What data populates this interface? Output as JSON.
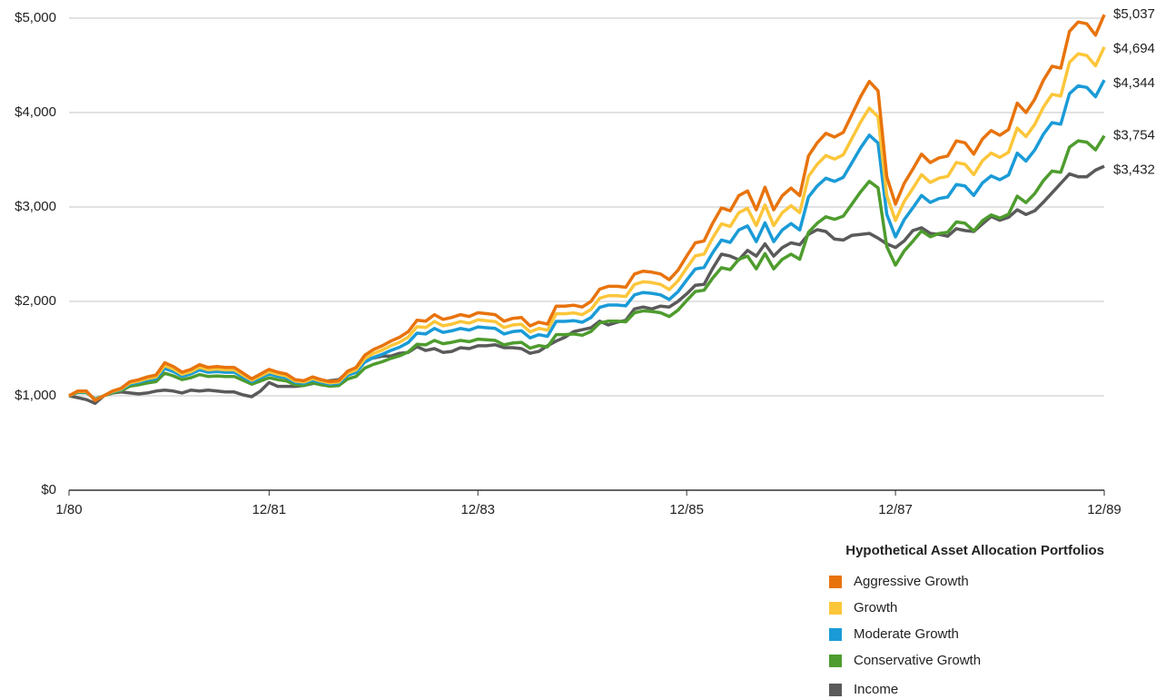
{
  "chart_data": {
    "type": "line",
    "legend_title": "Hypothetical Asset Allocation Portfolios",
    "legend": "bottom-right",
    "grid": true,
    "ylim": [
      0,
      5000
    ],
    "yticks": [
      {
        "value": 0,
        "label": "$0"
      },
      {
        "value": 1000,
        "label": "$1,000"
      },
      {
        "value": 2000,
        "label": "$2,000"
      },
      {
        "value": 3000,
        "label": "$3,000"
      },
      {
        "value": 4000,
        "label": "$4,000"
      },
      {
        "value": 5000,
        "label": "$5,000"
      }
    ],
    "categories": [
      "1/80",
      null,
      null,
      null,
      null,
      null,
      null,
      null,
      null,
      null,
      null,
      null,
      null,
      null,
      null,
      null,
      null,
      null,
      null,
      null,
      null,
      null,
      null,
      "12/81",
      null,
      null,
      null,
      null,
      null,
      null,
      null,
      null,
      null,
      null,
      null,
      null,
      null,
      null,
      null,
      null,
      null,
      null,
      null,
      null,
      null,
      null,
      null,
      "12/83",
      null,
      null,
      null,
      null,
      null,
      null,
      null,
      null,
      null,
      null,
      null,
      null,
      null,
      null,
      null,
      null,
      null,
      null,
      null,
      null,
      null,
      null,
      null,
      "12/85",
      null,
      null,
      null,
      null,
      null,
      null,
      null,
      null,
      null,
      null,
      null,
      null,
      null,
      null,
      null,
      null,
      null,
      null,
      null,
      null,
      null,
      null,
      null,
      "12/87",
      null,
      null,
      null,
      null,
      null,
      null,
      null,
      null,
      null,
      null,
      null,
      null,
      null,
      null,
      null,
      null,
      null,
      null,
      null,
      null,
      null,
      null,
      null,
      "12/89"
    ],
    "series": [
      {
        "name": "Aggressive Growth",
        "color": "#e8730c",
        "end_label": "$5,037",
        "values": [
          1000,
          1050,
          1050,
          950,
          1000,
          1050,
          1080,
          1150,
          1170,
          1200,
          1220,
          1350,
          1310,
          1250,
          1280,
          1330,
          1300,
          1310,
          1300,
          1300,
          1240,
          1180,
          1230,
          1280,
          1250,
          1230,
          1170,
          1160,
          1200,
          1170,
          1150,
          1160,
          1260,
          1300,
          1430,
          1490,
          1530,
          1580,
          1620,
          1680,
          1800,
          1790,
          1860,
          1810,
          1830,
          1860,
          1840,
          1880,
          1870,
          1860,
          1790,
          1820,
          1830,
          1740,
          1780,
          1760,
          1950,
          1950,
          1960,
          1940,
          2000,
          2130,
          2160,
          2160,
          2150,
          2290,
          2320,
          2310,
          2290,
          2230,
          2330,
          2480,
          2620,
          2640,
          2830,
          2990,
          2960,
          3120,
          3170,
          2970,
          3210,
          2970,
          3120,
          3200,
          3120,
          3540,
          3680,
          3780,
          3740,
          3790,
          3980,
          4170,
          4330,
          4230,
          3320,
          3030,
          3250,
          3400,
          3560,
          3470,
          3520,
          3540,
          3700,
          3680,
          3560,
          3720,
          3810,
          3760,
          3820,
          4100,
          4000,
          4140,
          4340,
          4490,
          4470,
          4860,
          4960,
          4940,
          4820,
          5037
        ]
      },
      {
        "name": "Growth",
        "color": "#fcc63a",
        "end_label": "$4,694",
        "values": [
          1000,
          1046,
          1046,
          954,
          1000,
          1046,
          1073,
          1137,
          1156,
          1183,
          1201,
          1320,
          1284,
          1229,
          1256,
          1302,
          1275,
          1284,
          1275,
          1275,
          1220,
          1165,
          1210,
          1256,
          1229,
          1210,
          1156,
          1146,
          1183,
          1156,
          1137,
          1146,
          1238,
          1275,
          1393,
          1448,
          1485,
          1531,
          1567,
          1622,
          1732,
          1723,
          1787,
          1741,
          1759,
          1787,
          1769,
          1805,
          1796,
          1787,
          1723,
          1750,
          1759,
          1677,
          1714,
          1695,
          1869,
          1869,
          1878,
          1860,
          1915,
          2034,
          2061,
          2061,
          2052,
          2180,
          2208,
          2199,
          2180,
          2125,
          2217,
          2354,
          2482,
          2501,
          2674,
          2821,
          2793,
          2940,
          2986,
          2803,
          3022,
          2803,
          2940,
          3013,
          2940,
          3324,
          3452,
          3544,
          3507,
          3553,
          3727,
          3901,
          4047,
          3955,
          3123,
          2857,
          3059,
          3196,
          3342,
          3260,
          3306,
          3324,
          3471,
          3452,
          3342,
          3489,
          3571,
          3525,
          3580,
          3837,
          3745,
          3873,
          4056,
          4193,
          4175,
          4532,
          4623,
          4605,
          4495,
          4694
        ]
      },
      {
        "name": "Moderate Growth",
        "color": "#1a9bd7",
        "end_label": "$4,344",
        "values": [
          1000,
          1041,
          1041,
          959,
          1000,
          1041,
          1066,
          1124,
          1141,
          1166,
          1182,
          1290,
          1257,
          1207,
          1232,
          1274,
          1249,
          1257,
          1249,
          1249,
          1199,
          1149,
          1191,
          1232,
          1207,
          1191,
          1141,
          1133,
          1166,
          1141,
          1124,
          1133,
          1216,
          1249,
          1356,
          1406,
          1439,
          1481,
          1514,
          1564,
          1663,
          1655,
          1713,
          1671,
          1688,
          1713,
          1696,
          1730,
          1721,
          1713,
          1655,
          1680,
          1688,
          1613,
          1647,
          1630,
          1788,
          1788,
          1796,
          1779,
          1829,
          1937,
          1962,
          1962,
          1953,
          2069,
          2094,
          2086,
          2069,
          2020,
          2103,
          2227,
          2343,
          2360,
          2517,
          2650,
          2625,
          2757,
          2799,
          2633,
          2832,
          2633,
          2757,
          2824,
          2757,
          3106,
          3222,
          3305,
          3271,
          3313,
          3470,
          3628,
          3761,
          3678,
          2923,
          2683,
          2865,
          2990,
          3122,
          3048,
          3089,
          3106,
          3238,
          3222,
          3122,
          3255,
          3329,
          3288,
          3338,
          3570,
          3487,
          3603,
          3769,
          3893,
          3877,
          4200,
          4283,
          4266,
          4167,
          4344
        ]
      },
      {
        "name": "Conservative Growth",
        "color": "#4e9c2e",
        "end_label": "$3,754",
        "values": [
          1000,
          1034,
          1034,
          966,
          1000,
          1034,
          1055,
          1102,
          1116,
          1136,
          1150,
          1239,
          1211,
          1171,
          1191,
          1225,
          1205,
          1211,
          1205,
          1205,
          1164,
          1123,
          1157,
          1191,
          1171,
          1157,
          1116,
          1109,
          1136,
          1116,
          1102,
          1109,
          1177,
          1205,
          1293,
          1334,
          1361,
          1396,
          1423,
          1464,
          1546,
          1539,
          1587,
          1552,
          1566,
          1587,
          1573,
          1600,
          1593,
          1587,
          1539,
          1559,
          1566,
          1505,
          1532,
          1518,
          1648,
          1648,
          1655,
          1641,
          1682,
          1771,
          1791,
          1791,
          1784,
          1880,
          1900,
          1893,
          1880,
          1839,
          1907,
          2009,
          2105,
          2118,
          2248,
          2357,
          2337,
          2446,
          2480,
          2344,
          2507,
          2344,
          2446,
          2500,
          2446,
          2732,
          2828,
          2896,
          2869,
          2903,
          3032,
          3162,
          3271,
          3203,
          2582,
          2384,
          2535,
          2637,
          2746,
          2685,
          2719,
          2732,
          2841,
          2828,
          2746,
          2855,
          2916,
          2882,
          2923,
          3114,
          3046,
          3141,
          3278,
          3380,
          3367,
          3633,
          3701,
          3687,
          3605,
          3754
        ]
      },
      {
        "name": "Income",
        "color": "#5a5a5b",
        "end_label": "$3,432",
        "values": [
          1000,
          980,
          960,
          920,
          1000,
          1030,
          1040,
          1030,
          1020,
          1030,
          1050,
          1060,
          1050,
          1030,
          1060,
          1050,
          1060,
          1050,
          1040,
          1040,
          1010,
          990,
          1050,
          1140,
          1100,
          1100,
          1100,
          1110,
          1130,
          1150,
          1160,
          1170,
          1250,
          1300,
          1390,
          1400,
          1420,
          1420,
          1450,
          1460,
          1520,
          1480,
          1500,
          1460,
          1470,
          1510,
          1500,
          1530,
          1530,
          1540,
          1510,
          1510,
          1500,
          1450,
          1470,
          1530,
          1580,
          1620,
          1680,
          1700,
          1720,
          1790,
          1750,
          1780,
          1800,
          1920,
          1940,
          1920,
          1950,
          1940,
          2000,
          2080,
          2170,
          2180,
          2350,
          2500,
          2480,
          2440,
          2540,
          2480,
          2610,
          2480,
          2570,
          2620,
          2600,
          2710,
          2760,
          2740,
          2660,
          2650,
          2700,
          2710,
          2720,
          2670,
          2610,
          2570,
          2640,
          2750,
          2780,
          2720,
          2710,
          2690,
          2770,
          2750,
          2740,
          2820,
          2900,
          2860,
          2890,
          2970,
          2920,
          2960,
          3050,
          3150,
          3250,
          3350,
          3320,
          3320,
          3390,
          3432
        ]
      }
    ]
  }
}
